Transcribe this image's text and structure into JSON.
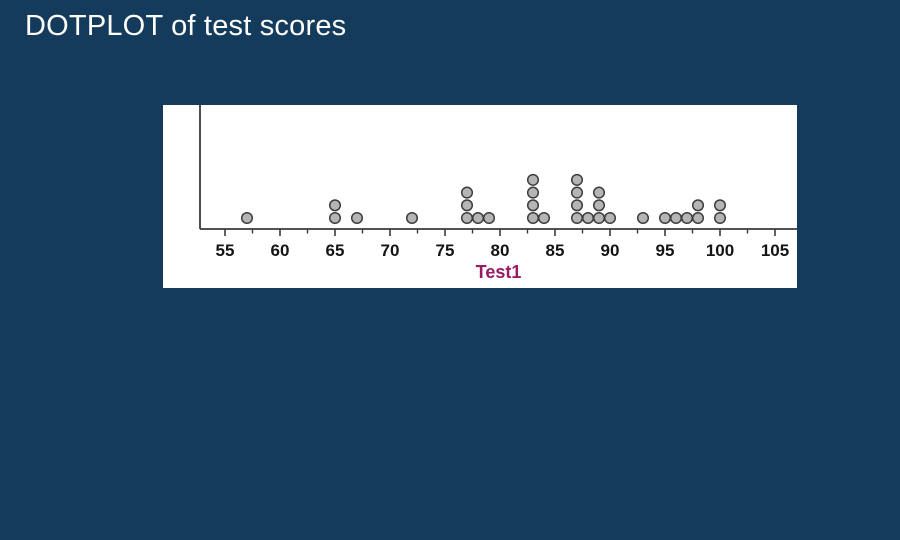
{
  "slide": {
    "title": "DOTPLOT of test scores",
    "background_color": "#153b5c",
    "title_color": "#fdfdfa"
  },
  "chart_data": {
    "type": "scatter",
    "variant": "dotplot",
    "title": "DOTPLOT of test scores",
    "xlabel": "Test1",
    "ylabel": "",
    "values": [
      57,
      65,
      65,
      67,
      72,
      77,
      77,
      77,
      78,
      79,
      83,
      83,
      83,
      83,
      84,
      87,
      87,
      87,
      87,
      88,
      89,
      89,
      89,
      90,
      93,
      95,
      96,
      97,
      98,
      98,
      100,
      100
    ],
    "x_ticks": [
      55,
      60,
      65,
      70,
      75,
      80,
      85,
      90,
      95,
      100,
      105
    ],
    "minor_tick_step": 2.5,
    "xlim": [
      52.7,
      107
    ],
    "grid": false,
    "legend": "none",
    "panel_bg": "#ffffff",
    "dot_fill": "#b5b5b5",
    "dot_stroke": "#3d3d3d",
    "axis_color": "#3a3a3a",
    "tick_label_color": "#141414",
    "xlabel_color": "#991b66"
  }
}
